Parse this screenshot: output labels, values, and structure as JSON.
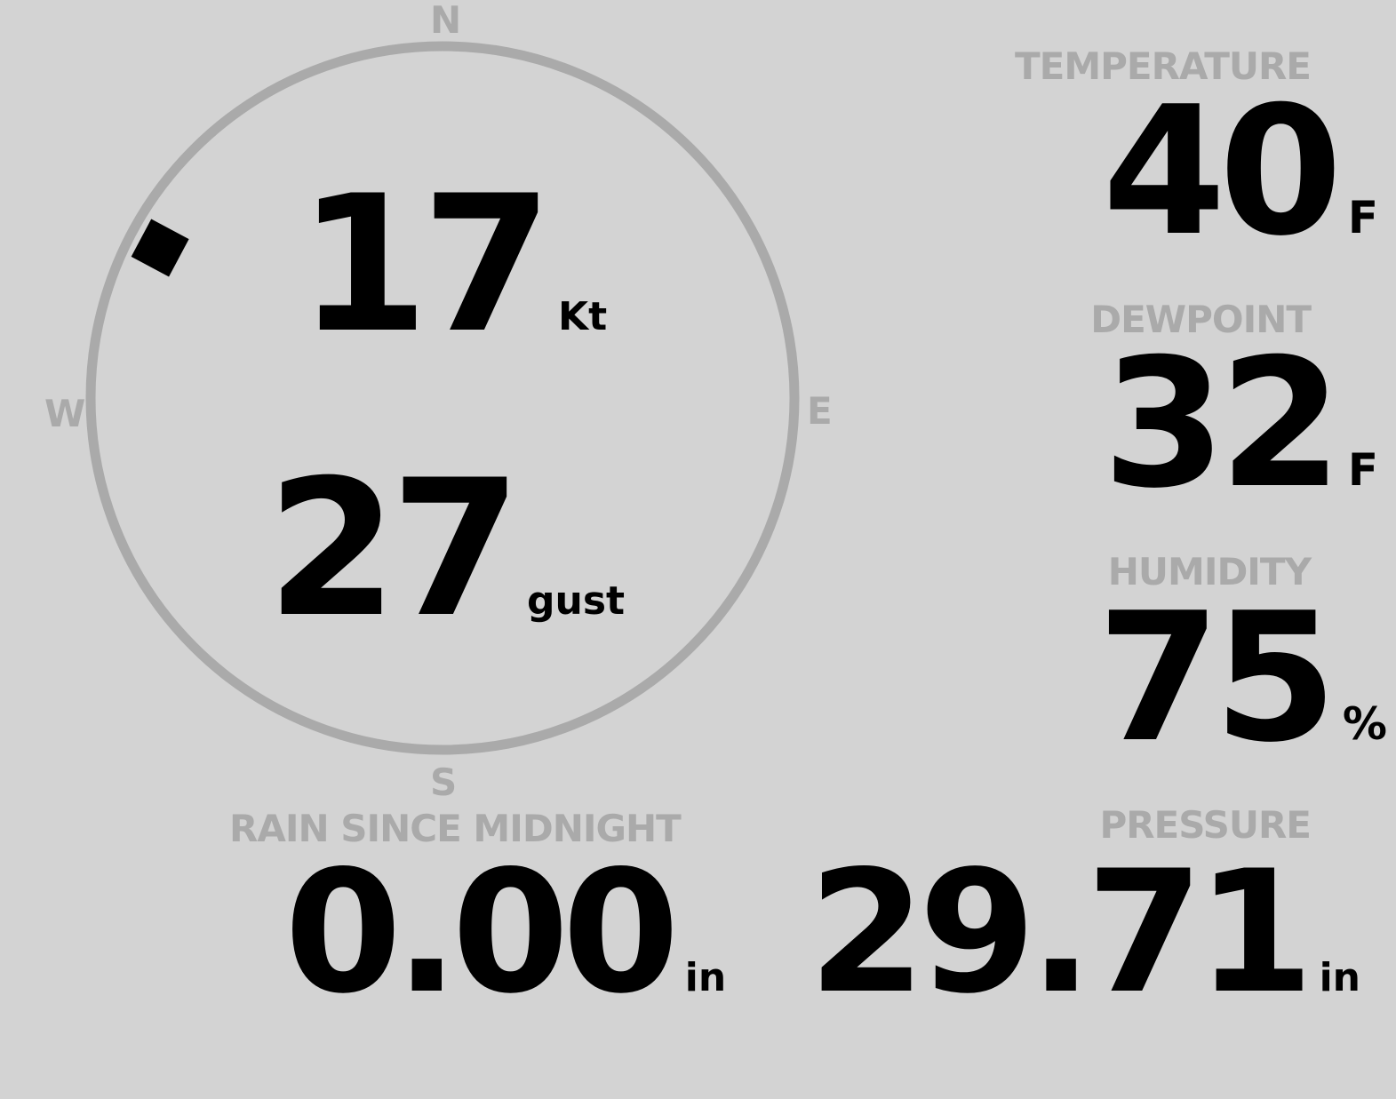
{
  "wind": {
    "speed": "17",
    "speed_unit": "Kt",
    "gust": "27",
    "gust_unit": "gust",
    "direction_deg": 298,
    "compass": {
      "n": "N",
      "s": "S",
      "e": "E",
      "w": "W"
    }
  },
  "temperature": {
    "label": "TEMPERATURE",
    "value": "40",
    "unit": "F"
  },
  "dewpoint": {
    "label": "DEWPOINT",
    "value": "32",
    "unit": "F"
  },
  "humidity": {
    "label": "HUMIDITY",
    "value": "75",
    "unit": "%"
  },
  "rain": {
    "label": "RAIN SINCE MIDNIGHT",
    "value": "0.00",
    "unit": "in"
  },
  "pressure": {
    "label": "PRESSURE",
    "value": "29.71",
    "unit": "in"
  },
  "colors": {
    "background": "#d3d3d3",
    "label": "#aaaaaa",
    "value": "#000000",
    "ring": "#aaaaaa"
  }
}
